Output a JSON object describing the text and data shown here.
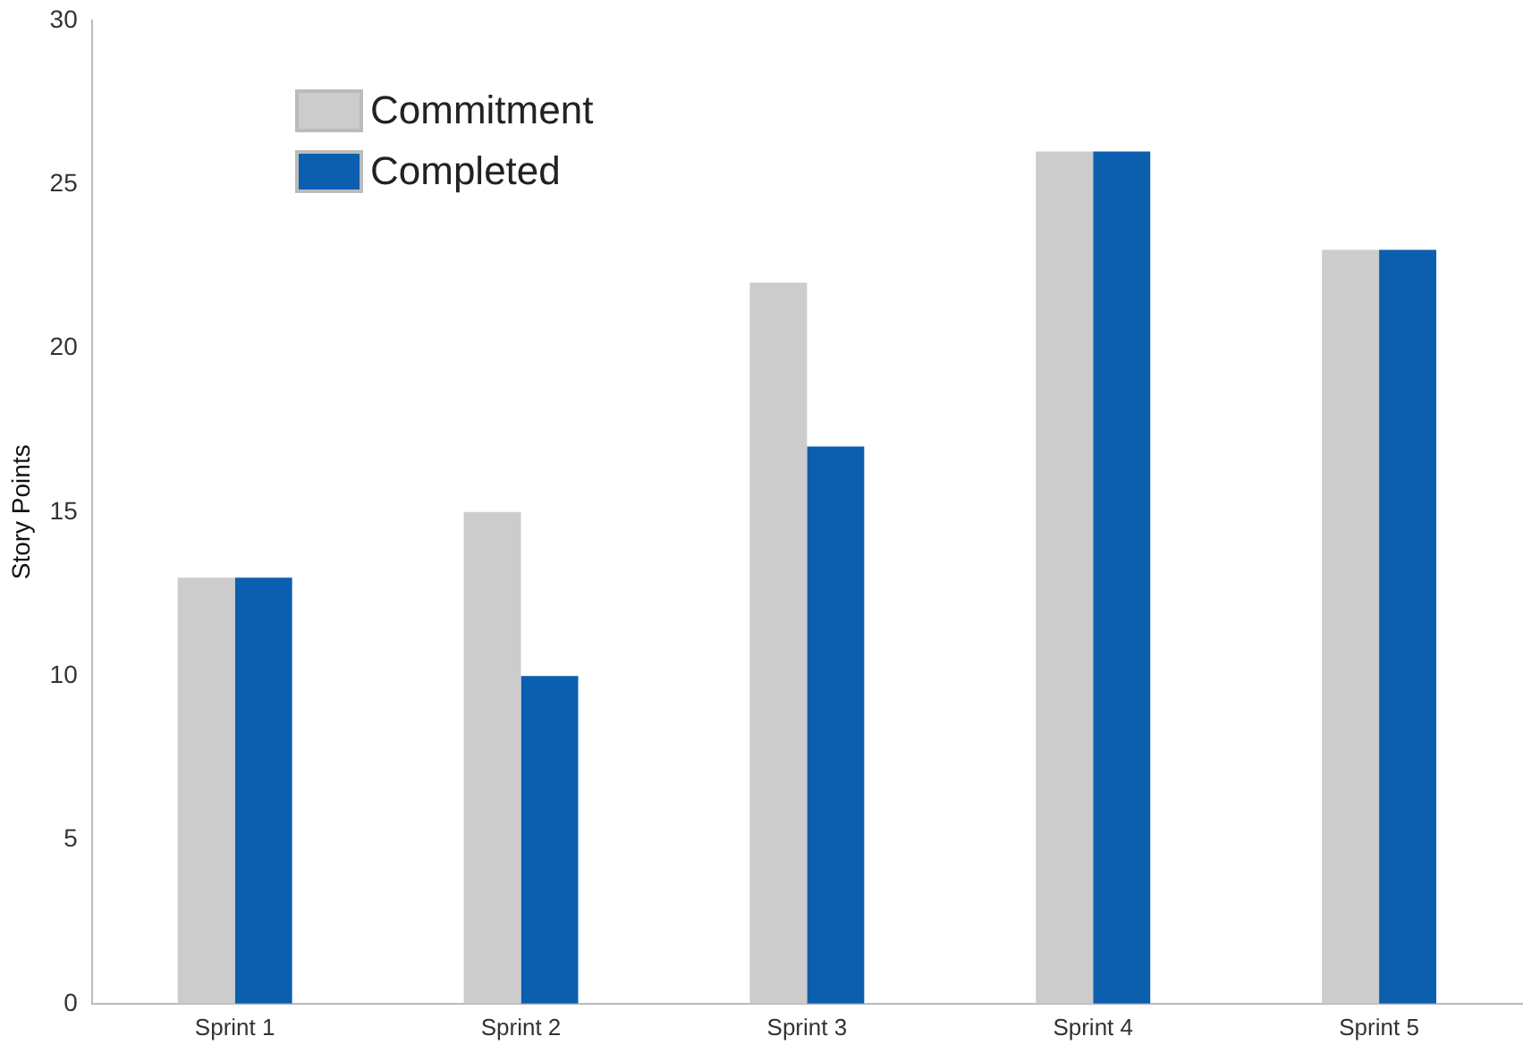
{
  "chart_data": {
    "type": "bar",
    "ylabel": "Story Points",
    "categories": [
      "Sprint 1",
      "Sprint 2",
      "Sprint 3",
      "Sprint 4",
      "Sprint 5"
    ],
    "series": [
      {
        "name": "Commitment",
        "color": "#cccccc",
        "values": [
          13,
          15,
          22,
          26,
          23
        ]
      },
      {
        "name": "Completed",
        "color": "#0b5fae",
        "values": [
          13,
          10,
          17,
          26,
          23
        ]
      }
    ],
    "ylim": [
      0,
      30
    ],
    "yticks": [
      0,
      5,
      10,
      15,
      20,
      25,
      30
    ],
    "grid": false,
    "legend": "top left"
  }
}
